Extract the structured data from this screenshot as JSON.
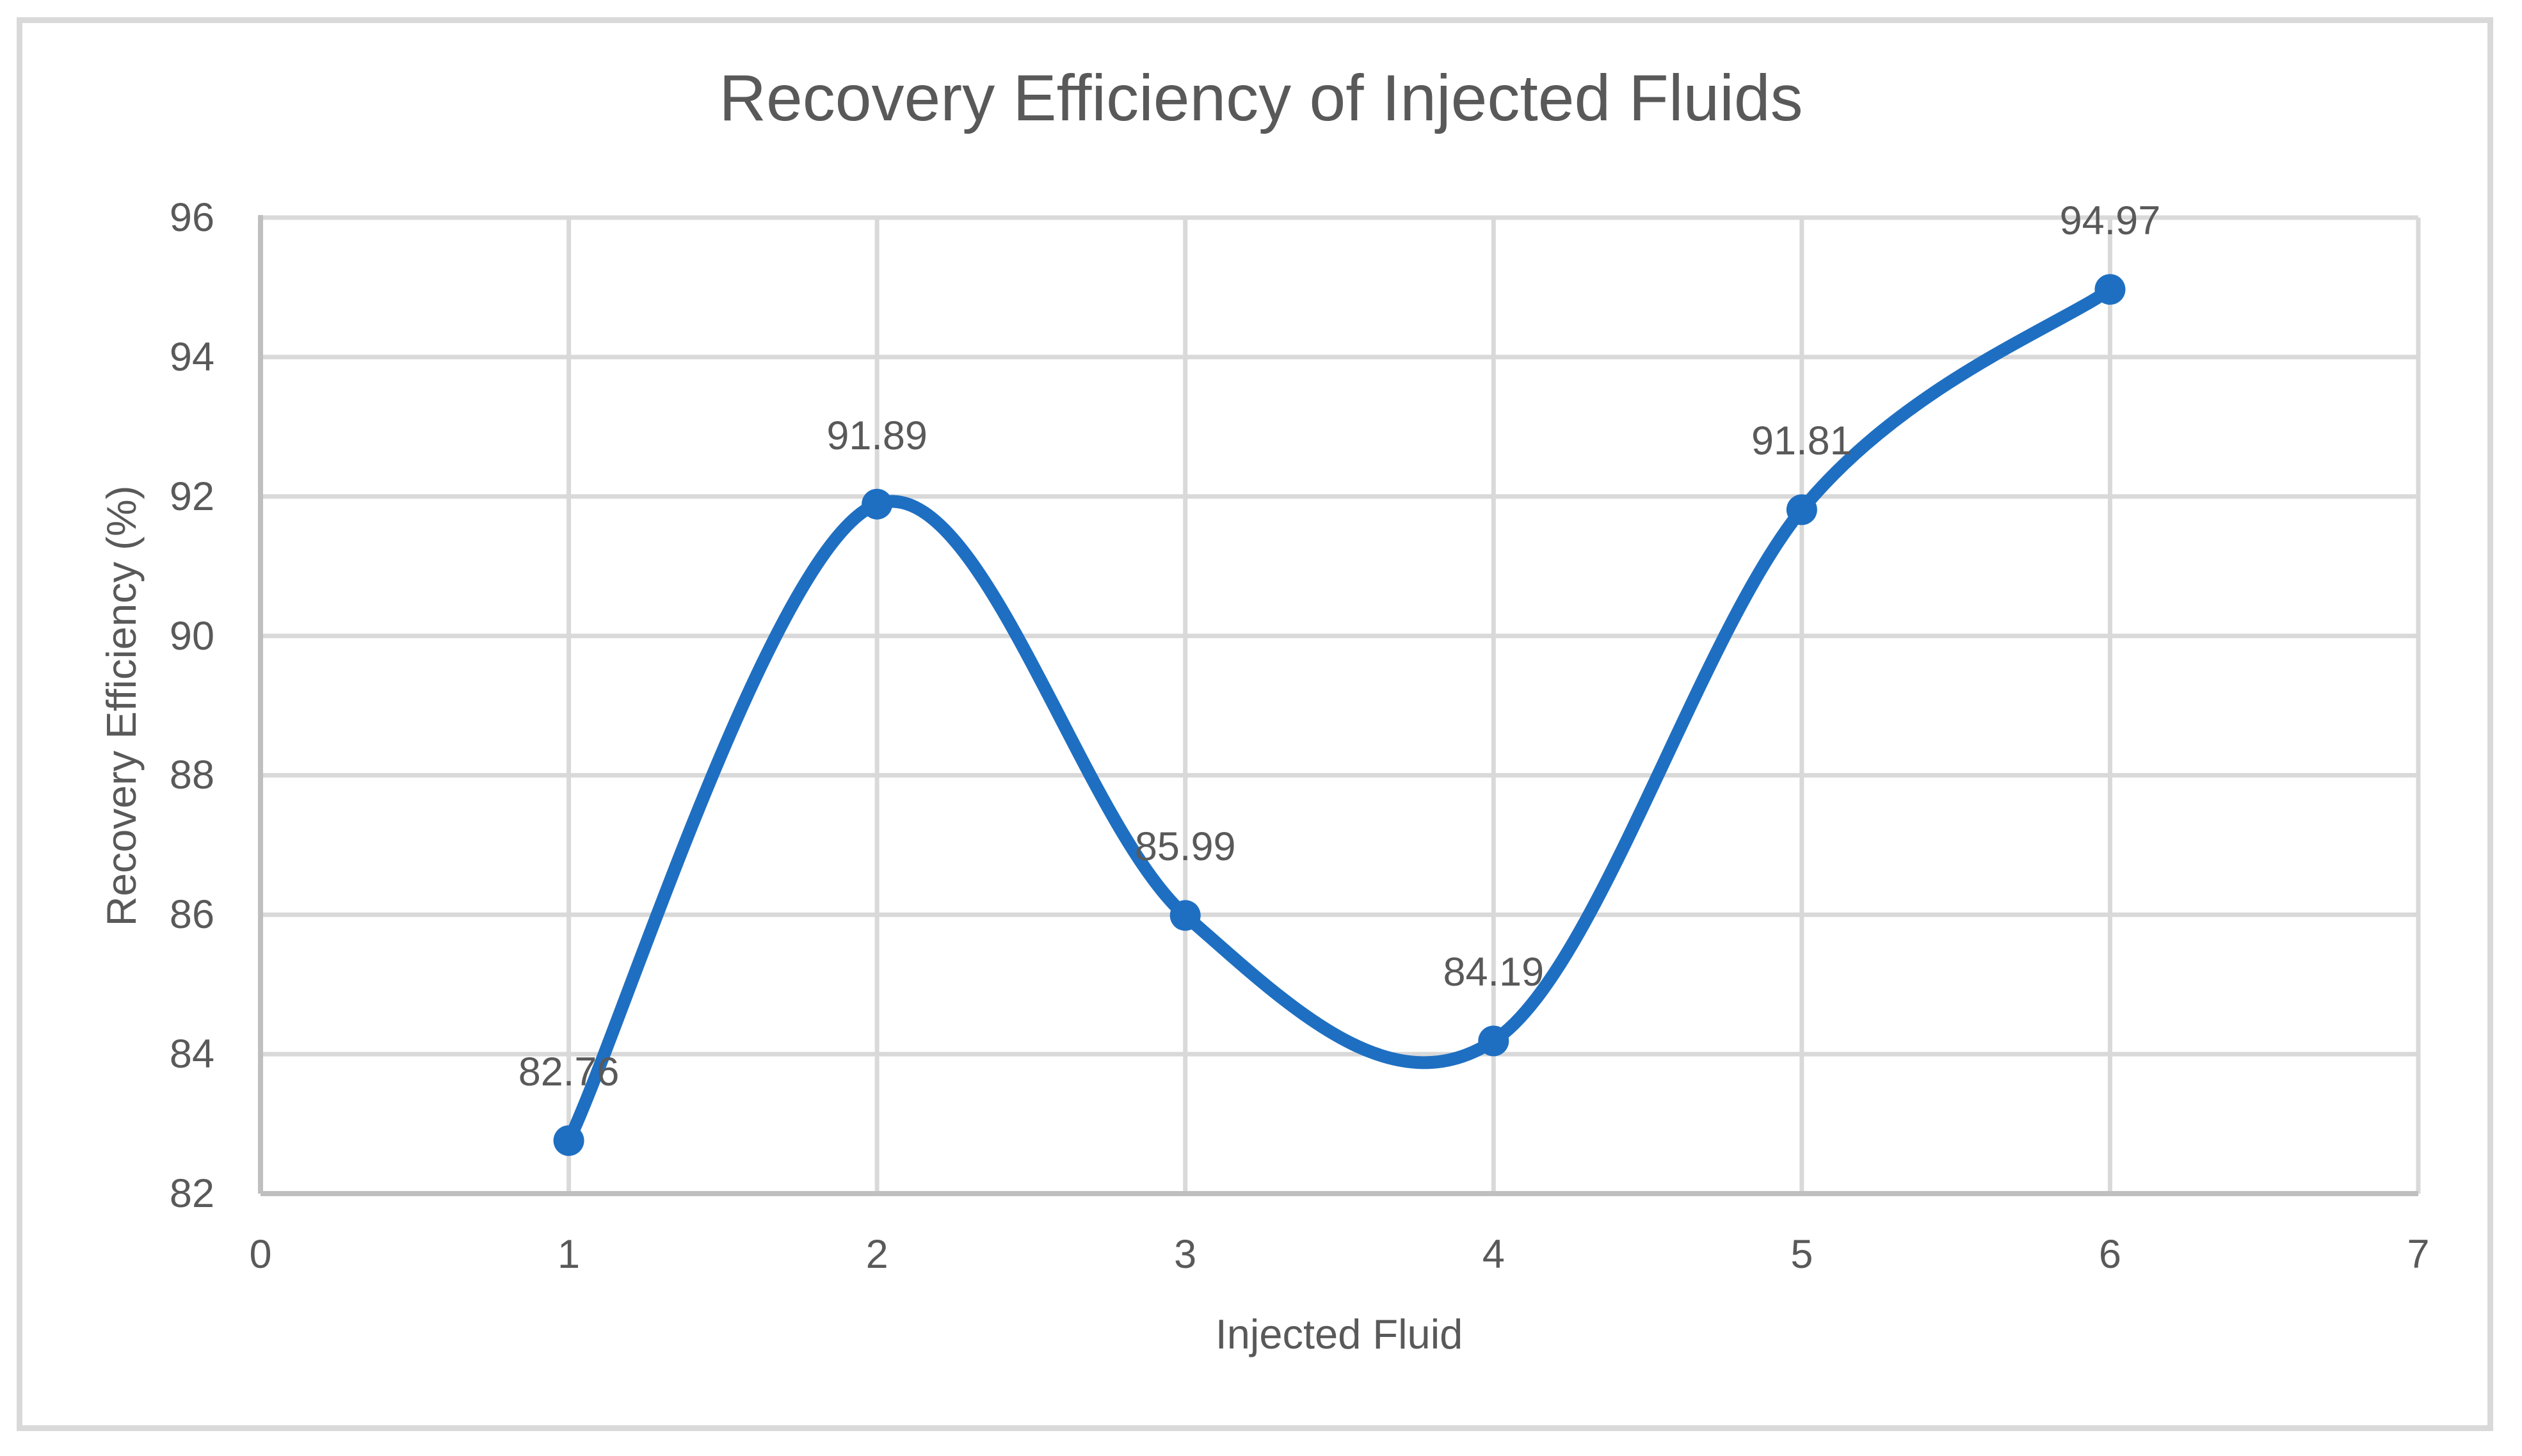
{
  "chart_data": {
    "type": "line",
    "title": "Recovery Efficiency of Injected Fluids",
    "xlabel": "Injected Fluid",
    "ylabel": "Recovery Efficiency (%)",
    "x": [
      1,
      2,
      3,
      4,
      5,
      6
    ],
    "values": [
      82.76,
      91.89,
      85.99,
      84.19,
      91.81,
      94.97
    ],
    "point_labels": [
      "82.76",
      "91.89",
      "85.99",
      "84.19",
      "91.81",
      "94.97"
    ],
    "x_ticks": [
      0,
      1,
      2,
      3,
      4,
      5,
      6,
      7
    ],
    "y_ticks": [
      82,
      84,
      86,
      88,
      90,
      92,
      94,
      96
    ],
    "xlim": [
      0,
      7
    ],
    "ylim": [
      82,
      96
    ],
    "grid": true,
    "smooth": true,
    "marker": "circle",
    "legend": "none",
    "colors": {
      "series": "#1E6FC2",
      "gridline": "#D9D9D9",
      "axis_line": "#BFBFBF",
      "text": "#595959",
      "chart_border": "#D9D9D9",
      "background": "#FFFFFF"
    }
  }
}
